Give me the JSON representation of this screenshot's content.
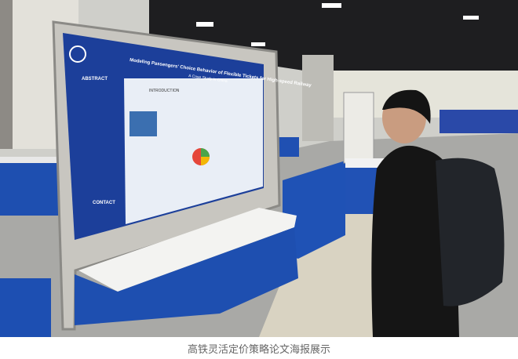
{
  "photo": {
    "poster": {
      "title": "Modeling Passengers' Choice Behavior of Flexible Tickets for High-speed Railway",
      "subtitle": "A Case Study in China",
      "sections": [
        "ABSTRACT",
        "INTRODUCTION",
        "CONTACT"
      ]
    },
    "colors": {
      "poster_blue": "#1c3f9a",
      "table_skirt": "#1e4fb0",
      "carpet": "#a9a9a6",
      "ceiling": "#1e1e20"
    }
  },
  "caption": "高铁灵活定价策略论文海报展示"
}
